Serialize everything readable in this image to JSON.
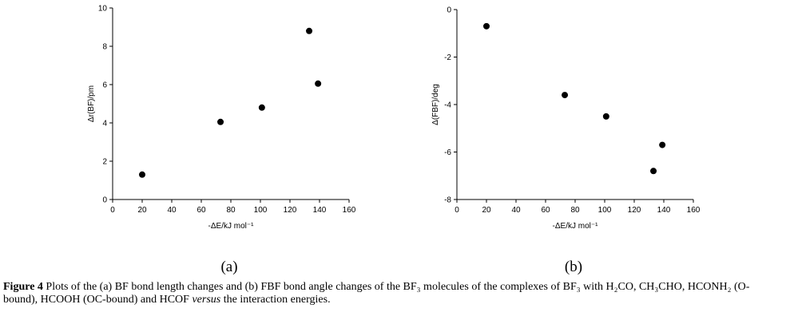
{
  "chart_data": [
    {
      "type": "scatter",
      "panel_label": "(a)",
      "x_label": "-ΔE/kJ mol⁻¹",
      "y_label": "Δr(BF)/pm",
      "x": [
        20,
        73,
        101,
        133,
        139
      ],
      "values": [
        1.3,
        4.05,
        4.8,
        8.8,
        6.05
      ],
      "color": "#000000",
      "xlim": [
        0,
        160
      ],
      "xticks": [
        0,
        20,
        40,
        60,
        80,
        100,
        120,
        140,
        160
      ],
      "ylim": [
        0,
        10
      ],
      "yticks": [
        0,
        2,
        4,
        6,
        8,
        10
      ]
    },
    {
      "type": "scatter",
      "panel_label": "(b)",
      "x_label": "-ΔE/kJ mol⁻¹",
      "y_label": "Δ(FBF)/deg",
      "x": [
        20,
        73,
        101,
        133,
        139
      ],
      "values": [
        -0.7,
        -3.6,
        -4.5,
        -6.8,
        -5.7
      ],
      "color": "#000000",
      "xlim": [
        0,
        160
      ],
      "xticks": [
        0,
        20,
        40,
        60,
        80,
        100,
        120,
        140,
        160
      ],
      "ylim": [
        -8,
        0
      ],
      "yticks": [
        -8,
        -6,
        -4,
        -2,
        0
      ]
    }
  ],
  "caption": {
    "segments": [
      "Figure 4",
      " Plots of the (a) BF bond length changes and (b) FBF bond angle changes of the BF₃ molecules of the complexes of BF₃ with H₂CO, CH₃CHO, HCONH₂ (O-bound), HCOOH (OC-bound) and HCOF ",
      "versus",
      " the interaction energies."
    ]
  }
}
